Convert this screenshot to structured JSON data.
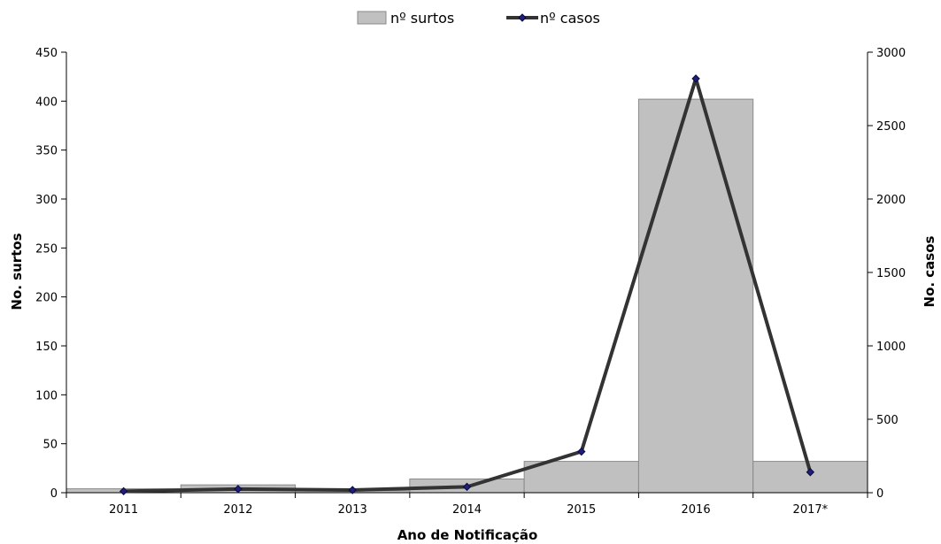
{
  "chart_data": {
    "type": "bar",
    "categories": [
      "2011",
      "2012",
      "2013",
      "2014",
      "2015",
      "2016",
      "2017*"
    ],
    "series": [
      {
        "name": "nº surtos",
        "type": "bar",
        "axis": "left",
        "color": "#c0c0c0",
        "values": [
          4,
          8,
          2,
          14,
          32,
          402,
          32
        ]
      },
      {
        "name": "nº casos",
        "type": "line",
        "axis": "right",
        "color": "#333333",
        "marker_color": "#1f1f7a",
        "values": [
          10,
          25,
          18,
          40,
          280,
          2820,
          140
        ]
      }
    ],
    "xlabel": "Ano de Notificação",
    "ylabel_left": "No. surtos",
    "ylabel_right": "No. casos",
    "ylim_left": [
      0,
      450
    ],
    "ylim_right": [
      0,
      3000
    ],
    "yticks_left": [
      "0",
      "50",
      "100",
      "150",
      "200",
      "250",
      "300",
      "350",
      "400",
      "450"
    ],
    "yticks_right": [
      "0",
      "500",
      "1000",
      "1500",
      "2000",
      "2500",
      "3000"
    ],
    "legend_position": "top-center",
    "grid": false
  }
}
